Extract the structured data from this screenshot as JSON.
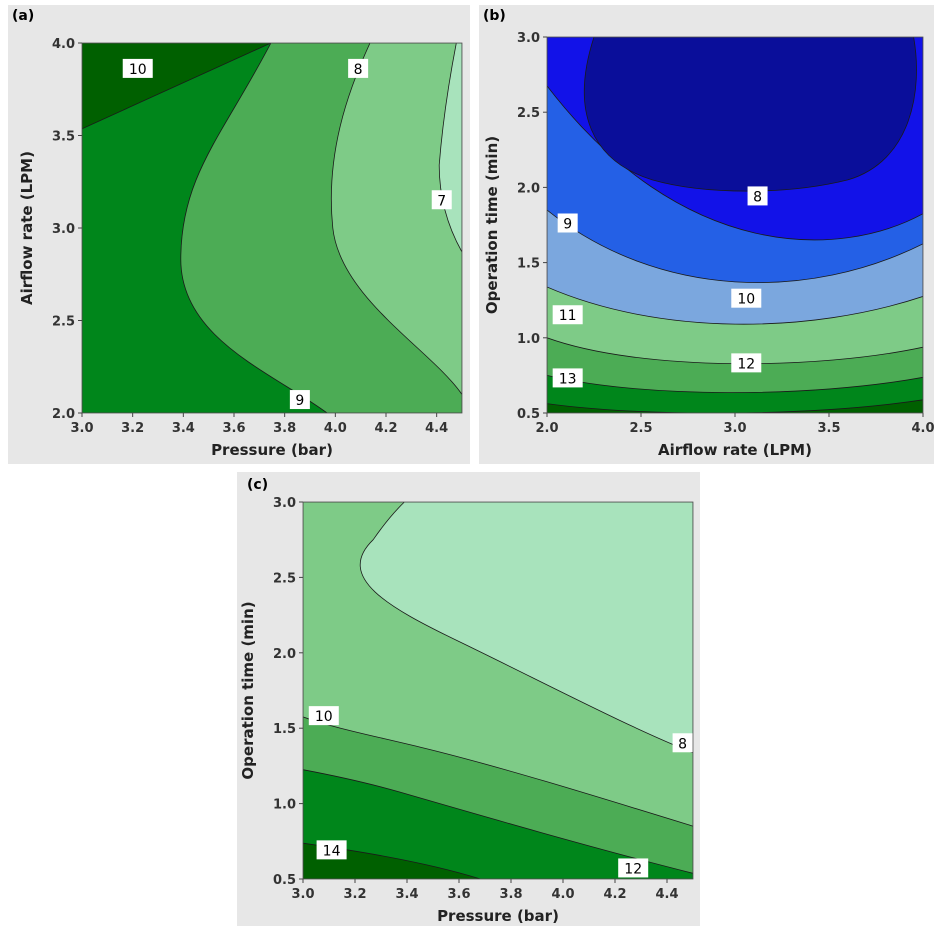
{
  "chart_data": [
    {
      "id": "a",
      "panel_label": "(a)",
      "type": "contour",
      "xlabel": "Pressure (bar)",
      "ylabel": "Airflow rate (LPM)",
      "xlim": [
        3.0,
        4.5
      ],
      "ylim": [
        2.0,
        4.0
      ],
      "xticks": [
        "3.0",
        "3.2",
        "3.4",
        "3.6",
        "3.8",
        "4.0",
        "4.2",
        "4.4"
      ],
      "yticks": [
        "2.0",
        "2.5",
        "3.0",
        "3.5",
        "4.0"
      ],
      "contour_labels": [
        {
          "text": "10",
          "x": 3.22,
          "y": 3.86
        },
        {
          "text": "8",
          "x": 4.09,
          "y": 3.86
        },
        {
          "text": "7",
          "x": 4.42,
          "y": 3.15
        },
        {
          "text": "9",
          "x": 3.86,
          "y": 2.07
        }
      ],
      "colors": [
        "#006000",
        "#00861b",
        "#4cac55",
        "#7ecb87",
        "#a8e3bc"
      ]
    },
    {
      "id": "b",
      "panel_label": "(b)",
      "type": "contour",
      "xlabel": "Airflow rate (LPM)",
      "ylabel": "Operation time (min)",
      "xlim": [
        2.0,
        4.0
      ],
      "ylim": [
        0.5,
        3.0
      ],
      "xticks": [
        "2.0",
        "2.5",
        "3.0",
        "3.5",
        "4.0"
      ],
      "yticks": [
        "0.5",
        "1.0",
        "1.5",
        "2.0",
        "2.5",
        "3.0"
      ],
      "contour_labels": [
        {
          "text": "8",
          "x": 3.12,
          "y": 1.94
        },
        {
          "text": "9",
          "x": 2.11,
          "y": 1.76
        },
        {
          "text": "10",
          "x": 3.06,
          "y": 1.26
        },
        {
          "text": "11",
          "x": 2.11,
          "y": 1.15
        },
        {
          "text": "12",
          "x": 3.06,
          "y": 0.83
        },
        {
          "text": "13",
          "x": 2.11,
          "y": 0.73
        }
      ],
      "colors": [
        "#006000",
        "#00861b",
        "#4cac55",
        "#7ecb87",
        "#7ba7de",
        "#2460e6",
        "#1212e8",
        "#0a0e9a"
      ]
    },
    {
      "id": "c",
      "panel_label": "(c)",
      "type": "contour",
      "xlabel": "Pressure (bar)",
      "ylabel": "Operation time (min)",
      "xlim": [
        3.0,
        4.5
      ],
      "ylim": [
        0.5,
        3.0
      ],
      "xticks": [
        "3.0",
        "3.2",
        "3.4",
        "3.6",
        "3.8",
        "4.0",
        "4.2",
        "4.4"
      ],
      "yticks": [
        "0.5",
        "1.0",
        "1.5",
        "2.0",
        "2.5",
        "3.0"
      ],
      "contour_labels": [
        {
          "text": "10",
          "x": 3.08,
          "y": 1.58
        },
        {
          "text": "8",
          "x": 4.46,
          "y": 1.4
        },
        {
          "text": "14",
          "x": 3.11,
          "y": 0.69
        },
        {
          "text": "12",
          "x": 4.27,
          "y": 0.57
        }
      ],
      "colors": [
        "#006000",
        "#00861b",
        "#4cac55",
        "#7ecb87",
        "#a8e3bc"
      ]
    }
  ]
}
